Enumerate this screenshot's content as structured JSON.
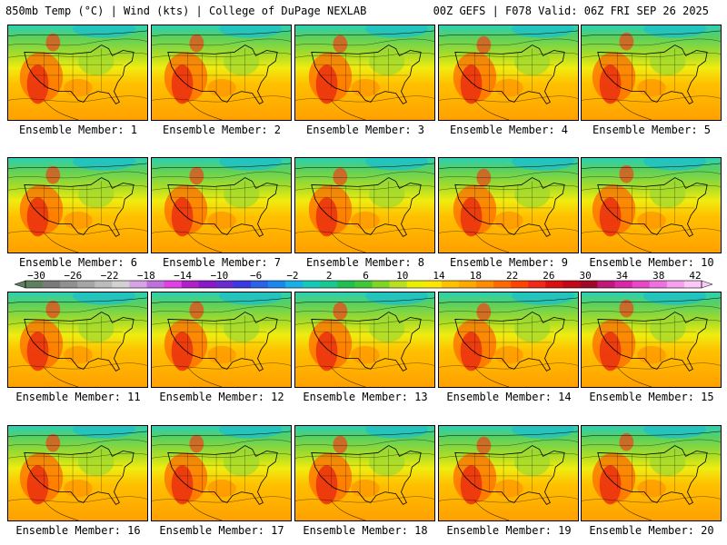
{
  "header": {
    "left": "850mb Temp (°C) | Wind (kts) | College of DuPage NEXLAB",
    "right": "00Z GEFS | F078 Valid: 06Z FRI SEP 26 2025"
  },
  "members": [
    {
      "label": "Ensemble Member: 1"
    },
    {
      "label": "Ensemble Member: 2"
    },
    {
      "label": "Ensemble Member: 3"
    },
    {
      "label": "Ensemble Member: 4"
    },
    {
      "label": "Ensemble Member: 5"
    },
    {
      "label": "Ensemble Member: 6"
    },
    {
      "label": "Ensemble Member: 7"
    },
    {
      "label": "Ensemble Member: 8"
    },
    {
      "label": "Ensemble Member: 9"
    },
    {
      "label": "Ensemble Member: 10"
    },
    {
      "label": "Ensemble Member: 11"
    },
    {
      "label": "Ensemble Member: 12"
    },
    {
      "label": "Ensemble Member: 13"
    },
    {
      "label": "Ensemble Member: 14"
    },
    {
      "label": "Ensemble Member: 15"
    },
    {
      "label": "Ensemble Member: 16"
    },
    {
      "label": "Ensemble Member: 17"
    },
    {
      "label": "Ensemble Member: 18"
    },
    {
      "label": "Ensemble Member: 19"
    },
    {
      "label": "Ensemble Member: 20"
    }
  ],
  "colorbar": {
    "ticks": [
      "-30",
      "-26",
      "-22",
      "-18",
      "-14",
      "-10",
      "-6",
      "-2",
      "2",
      "6",
      "10",
      "14",
      "18",
      "22",
      "26",
      "30",
      "34",
      "38",
      "42"
    ],
    "colors": [
      "#5f7f5f",
      "#7a7a7a",
      "#909090",
      "#a6a6a6",
      "#bcbcbc",
      "#d2d2d2",
      "#d7a3e6",
      "#c070dc",
      "#e040e6",
      "#b020c8",
      "#8a18c8",
      "#6a2ad0",
      "#3a3ae0",
      "#2a62e8",
      "#1a88f0",
      "#18b0e6",
      "#16c8b8",
      "#18c890",
      "#20c050",
      "#40c838",
      "#80d428",
      "#b8e020",
      "#e8f000",
      "#ffe600",
      "#ffc000",
      "#ffa800",
      "#ff8c00",
      "#ff6a00",
      "#ff4400",
      "#f02818",
      "#d81010",
      "#c00818",
      "#a00828",
      "#c01878",
      "#d828a8",
      "#e848c8",
      "#f070e0",
      "#f8a0f0",
      "#fcc8f8"
    ]
  }
}
